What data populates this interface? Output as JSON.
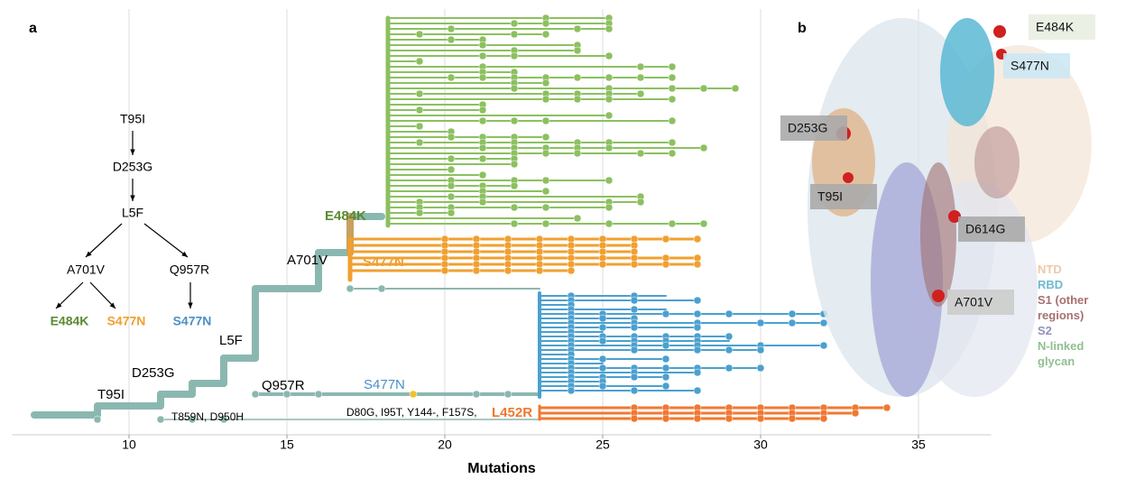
{
  "panel_a": {
    "label": "a",
    "axis": {
      "label": "Mutations",
      "xlim": [
        6.3,
        37.3
      ],
      "xticks": [
        10,
        15,
        20,
        25,
        30,
        35
      ],
      "grid": true
    },
    "pathway": {
      "nodes": [
        "T95I",
        "D253G",
        "L5F",
        "A701V",
        "Q957R",
        "E484K",
        "S477N",
        "S477N"
      ],
      "colors": [
        "#000000",
        "#000000",
        "#000000",
        "#000000",
        "#000000",
        "#5a8a32",
        "#f0a030",
        "#4a90c8"
      ]
    },
    "tree_labels": [
      {
        "text": "T95I",
        "color": "#000000"
      },
      {
        "text": "D253G",
        "color": "#000000"
      },
      {
        "text": "L5F",
        "color": "#000000"
      },
      {
        "text": "A701V",
        "color": "#000000"
      },
      {
        "text": "E484K",
        "color": "#5a8a32"
      },
      {
        "text": "S477N",
        "color": "#f0a030"
      },
      {
        "text": "Q957R",
        "color": "#000000"
      },
      {
        "text": "S477N",
        "color": "#4a90c8"
      },
      {
        "text": "T859N, D950H",
        "color": "#000000"
      },
      {
        "text": "D80G, I95T, Y144-, F157S,",
        "color": "#000000"
      },
      {
        "text": "L452R",
        "color": "#f07830"
      }
    ]
  },
  "panel_b": {
    "label": "b",
    "mutation_labels": [
      "E484K",
      "S477N",
      "D253G",
      "T95I",
      "D614G",
      "A701V"
    ],
    "legend": [
      {
        "text": "NTD",
        "color": "#f0c8a8"
      },
      {
        "text": "RBD",
        "color": "#70b8d0"
      },
      {
        "text": "S1 (other regions)",
        "color": "#a87070"
      },
      {
        "text": "S2",
        "color": "#9090c0"
      },
      {
        "text": "N-linked glycan",
        "color": "#90c090"
      }
    ]
  }
}
